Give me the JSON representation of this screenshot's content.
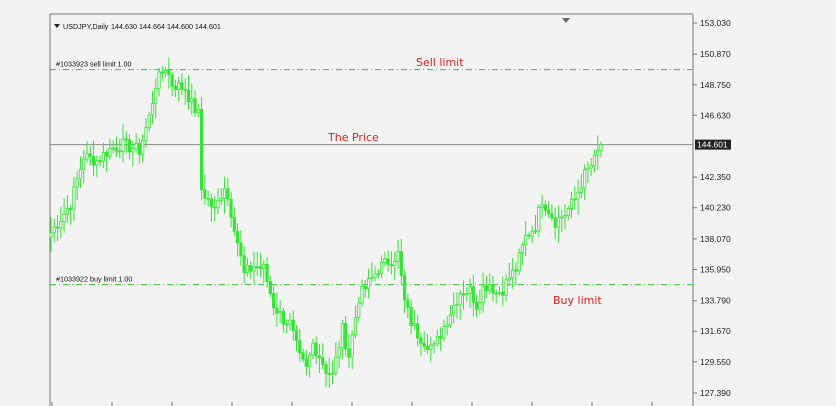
{
  "header": {
    "symbol": "USDJPY,Daily",
    "ohlc": "144.630 144.664 144.600 144.601",
    "menu_icon": "triangle-down-icon"
  },
  "price_axis": {
    "ticks": [
      "153.030",
      "150.870",
      "148.750",
      "146.630",
      "142.350",
      "140.230",
      "138.070",
      "135.950",
      "133.790",
      "131.670",
      "129.550",
      "127.390"
    ],
    "tick_values": [
      153.03,
      150.87,
      148.75,
      146.63,
      142.35,
      140.23,
      138.07,
      135.95,
      133.79,
      131.67,
      129.55,
      127.39
    ],
    "current_price_label": "144.601"
  },
  "orders": {
    "sell": {
      "label": "#1033923 sell limit 1.00",
      "price": 149.8
    },
    "buy": {
      "label": "#1033922 buy limit 1.00",
      "price": 134.9
    }
  },
  "annotations": {
    "sell_limit": "Sell limit",
    "the_price": "The Price",
    "buy_limit": "Buy limit"
  },
  "colors": {
    "background": "#f2f3f2",
    "candle": "#33e633",
    "order_line": "#3bbf3b",
    "price_line": "#8a8a8a",
    "annotation": "#e0201b"
  },
  "chart_data": {
    "type": "candlestick",
    "symbol": "USDJPY",
    "timeframe": "Daily",
    "y_axis_ticks": [
      153.03,
      150.87,
      148.75,
      146.63,
      142.35,
      140.23,
      138.07,
      135.95,
      133.79,
      131.67,
      129.55,
      127.39
    ],
    "last_price": 144.601,
    "anchors": [
      [
        0,
        138.5
      ],
      [
        6,
        140.5
      ],
      [
        10,
        143.8
      ],
      [
        14,
        143.5
      ],
      [
        18,
        144.3
      ],
      [
        22,
        144.6
      ],
      [
        27,
        144.2
      ],
      [
        30,
        146.5
      ],
      [
        32,
        148.8
      ],
      [
        35,
        150.0
      ],
      [
        37,
        148.8
      ],
      [
        41,
        148.5
      ],
      [
        43,
        147.4
      ],
      [
        45,
        146.7
      ],
      [
        46,
        141.5
      ],
      [
        50,
        140.0
      ],
      [
        53,
        141.8
      ],
      [
        56,
        139.0
      ],
      [
        59,
        135.6
      ],
      [
        62,
        136.2
      ],
      [
        65,
        136.0
      ],
      [
        68,
        133.5
      ],
      [
        71,
        132.5
      ],
      [
        73,
        132.2
      ],
      [
        76,
        129.8
      ],
      [
        78,
        129.0
      ],
      [
        80,
        130.8
      ],
      [
        82,
        130.0
      ],
      [
        84,
        129.0
      ],
      [
        86,
        128.6
      ],
      [
        89,
        131.8
      ],
      [
        91,
        130.0
      ],
      [
        94,
        134.0
      ],
      [
        97,
        135.0
      ],
      [
        100,
        136.0
      ],
      [
        103,
        136.5
      ],
      [
        106,
        137.0
      ],
      [
        108,
        133.7
      ],
      [
        110,
        132.3
      ],
      [
        112,
        131.5
      ],
      [
        114,
        131.0
      ],
      [
        117,
        130.5
      ],
      [
        120,
        132.0
      ],
      [
        122,
        133.0
      ],
      [
        125,
        134.4
      ],
      [
        128,
        134.5
      ],
      [
        130,
        133.5
      ],
      [
        132,
        134.7
      ],
      [
        134,
        135.0
      ],
      [
        136,
        134.3
      ],
      [
        138,
        134.6
      ],
      [
        140,
        135.4
      ],
      [
        142,
        136.0
      ],
      [
        145,
        138.2
      ],
      [
        148,
        139.0
      ],
      [
        150,
        140.8
      ],
      [
        152,
        140.1
      ],
      [
        154,
        139.3
      ],
      [
        157,
        139.8
      ],
      [
        160,
        140.8
      ],
      [
        163,
        142.5
      ],
      [
        166,
        143.5
      ],
      [
        168,
        144.6
      ]
    ]
  }
}
